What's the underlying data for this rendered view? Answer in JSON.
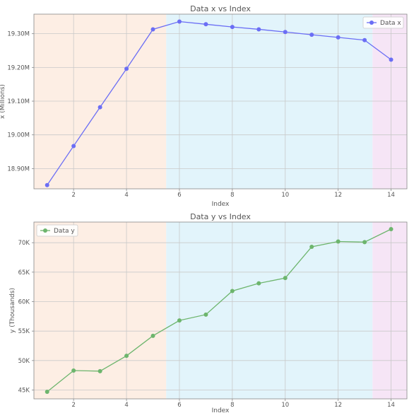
{
  "chart_data": [
    {
      "type": "line",
      "title": "Data x vs Index",
      "xlabel": "Index",
      "ylabel": "x (Millions)",
      "x": [
        1,
        2,
        3,
        4,
        5,
        6,
        7,
        8,
        9,
        10,
        11,
        12,
        13,
        14
      ],
      "series": [
        {
          "name": "Data x",
          "color": "#6b6ef5",
          "values": [
            18.851,
            18.967,
            19.082,
            19.196,
            19.313,
            19.336,
            19.328,
            19.32,
            19.313,
            19.305,
            19.297,
            19.289,
            19.281,
            19.223
          ]
        }
      ],
      "xlim": [
        0.5,
        14.6
      ],
      "ylim": [
        18.84,
        19.358
      ],
      "xticks": [
        2,
        4,
        6,
        8,
        10,
        12,
        14
      ],
      "xtick_labels": [
        "2",
        "4",
        "6",
        "8",
        "10",
        "12",
        "14"
      ],
      "yticks": [
        18.9,
        19.0,
        19.1,
        19.2,
        19.3
      ],
      "ytick_labels": [
        "18.90M",
        "19.00M",
        "19.10M",
        "19.20M",
        "19.30M"
      ],
      "grid": true,
      "legend": "top-right",
      "bands": [
        {
          "from": 0.5,
          "to": 5.5,
          "color": "#fdeee4"
        },
        {
          "from": 5.5,
          "to": 13.3,
          "color": "#e2f4fb"
        },
        {
          "from": 13.3,
          "to": 14.6,
          "color": "#f6e5f6"
        }
      ]
    },
    {
      "type": "line",
      "title": "Data y vs Index",
      "xlabel": "Index",
      "ylabel": "y (Thousands)",
      "x": [
        1,
        2,
        3,
        4,
        5,
        6,
        7,
        8,
        9,
        10,
        11,
        12,
        13,
        14
      ],
      "series": [
        {
          "name": "Data y",
          "color": "#6db56d",
          "values": [
            44.7,
            48.3,
            48.2,
            50.8,
            54.2,
            56.8,
            57.8,
            61.8,
            63.1,
            64.0,
            69.3,
            70.2,
            70.1,
            72.3
          ]
        }
      ],
      "xlim": [
        0.5,
        14.6
      ],
      "ylim": [
        43.5,
        73.5
      ],
      "xticks": [
        2,
        4,
        6,
        8,
        10,
        12,
        14
      ],
      "xtick_labels": [
        "2",
        "4",
        "6",
        "8",
        "10",
        "12",
        "14"
      ],
      "yticks": [
        45,
        50,
        55,
        60,
        65,
        70
      ],
      "ytick_labels": [
        "45K",
        "50K",
        "55K",
        "60K",
        "65K",
        "70K"
      ],
      "grid": true,
      "legend": "top-left",
      "bands": [
        {
          "from": 0.5,
          "to": 5.5,
          "color": "#fdeee4"
        },
        {
          "from": 5.5,
          "to": 13.3,
          "color": "#e2f4fb"
        },
        {
          "from": 13.3,
          "to": 14.6,
          "color": "#f6e5f6"
        }
      ]
    }
  ]
}
